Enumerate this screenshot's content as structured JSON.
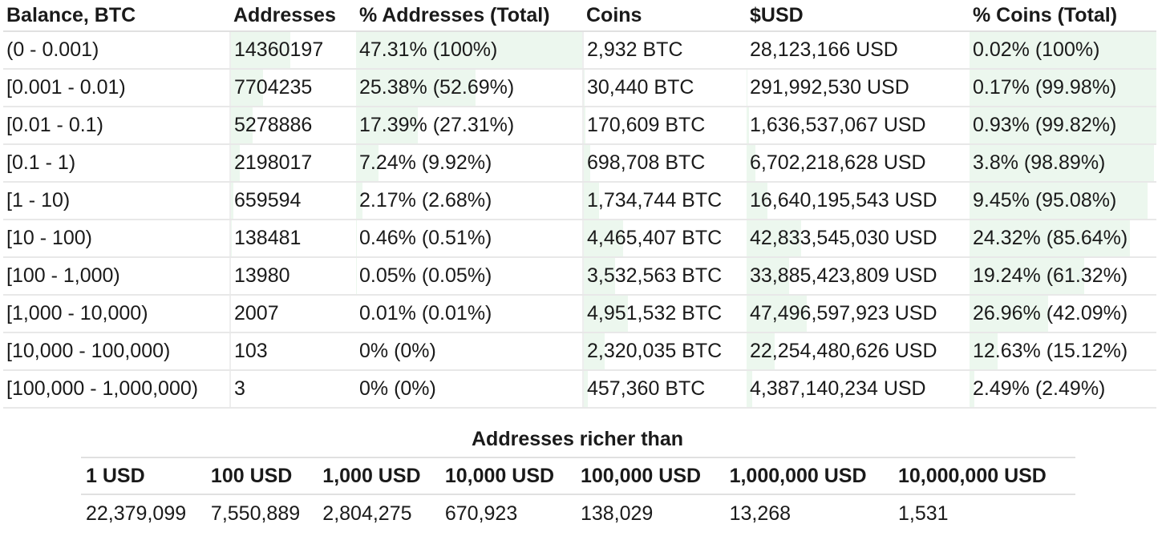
{
  "distribution": {
    "headers": [
      "Balance, BTC",
      "Addresses",
      "% Addresses (Total)",
      "Coins",
      "$USD",
      "% Coins (Total)"
    ],
    "fill_color": "#ecf7ee",
    "rows": [
      {
        "range": "(0 - 0.001)",
        "addresses": "14360197",
        "pct_addresses": "47.31% (100%)",
        "coins": "2,932 BTC",
        "usd": "28,123,166 USD",
        "pct_coins": "0.02% (100%)",
        "addr_pct": 47.31,
        "addr_cum": 100,
        "coins_pct": 0.02,
        "coins_cum": 100
      },
      {
        "range": "[0.001 - 0.01)",
        "addresses": "7704235",
        "pct_addresses": "25.38% (52.69%)",
        "coins": "30,440 BTC",
        "usd": "291,992,530 USD",
        "pct_coins": "0.17% (99.98%)",
        "addr_pct": 25.38,
        "addr_cum": 52.69,
        "coins_pct": 0.17,
        "coins_cum": 99.98
      },
      {
        "range": "[0.01 - 0.1)",
        "addresses": "5278886",
        "pct_addresses": "17.39% (27.31%)",
        "coins": "170,609 BTC",
        "usd": "1,636,537,067 USD",
        "pct_coins": "0.93% (99.82%)",
        "addr_pct": 17.39,
        "addr_cum": 27.31,
        "coins_pct": 0.93,
        "coins_cum": 99.82
      },
      {
        "range": "[0.1 - 1)",
        "addresses": "2198017",
        "pct_addresses": "7.24% (9.92%)",
        "coins": "698,708 BTC",
        "usd": "6,702,218,628 USD",
        "pct_coins": "3.8% (98.89%)",
        "addr_pct": 7.24,
        "addr_cum": 9.92,
        "coins_pct": 3.8,
        "coins_cum": 98.89
      },
      {
        "range": "[1 - 10)",
        "addresses": "659594",
        "pct_addresses": "2.17% (2.68%)",
        "coins": "1,734,744 BTC",
        "usd": "16,640,195,543 USD",
        "pct_coins": "9.45% (95.08%)",
        "addr_pct": 2.17,
        "addr_cum": 2.68,
        "coins_pct": 9.45,
        "coins_cum": 95.08
      },
      {
        "range": "[10 - 100)",
        "addresses": "138481",
        "pct_addresses": "0.46% (0.51%)",
        "coins": "4,465,407 BTC",
        "usd": "42,833,545,030 USD",
        "pct_coins": "24.32% (85.64%)",
        "addr_pct": 0.46,
        "addr_cum": 0.51,
        "coins_pct": 24.32,
        "coins_cum": 85.64
      },
      {
        "range": "[100 - 1,000)",
        "addresses": "13980",
        "pct_addresses": "0.05% (0.05%)",
        "coins": "3,532,563 BTC",
        "usd": "33,885,423,809 USD",
        "pct_coins": "19.24% (61.32%)",
        "addr_pct": 0.05,
        "addr_cum": 0.05,
        "coins_pct": 19.24,
        "coins_cum": 61.32
      },
      {
        "range": "[1,000 - 10,000)",
        "addresses": "2007",
        "pct_addresses": "0.01% (0.01%)",
        "coins": "4,951,532 BTC",
        "usd": "47,496,597,923 USD",
        "pct_coins": "26.96% (42.09%)",
        "addr_pct": 0.01,
        "addr_cum": 0.01,
        "coins_pct": 26.96,
        "coins_cum": 42.09
      },
      {
        "range": "[10,000 - 100,000)",
        "addresses": "103",
        "pct_addresses": "0% (0%)",
        "coins": "2,320,035 BTC",
        "usd": "22,254,480,626 USD",
        "pct_coins": "12.63% (15.12%)",
        "addr_pct": 0,
        "addr_cum": 0,
        "coins_pct": 12.63,
        "coins_cum": 15.12
      },
      {
        "range": "[100,000 - 1,000,000)",
        "addresses": "3",
        "pct_addresses": "0% (0%)",
        "coins": "457,360 BTC",
        "usd": "4,387,140,234 USD",
        "pct_coins": "2.49% (2.49%)",
        "addr_pct": 0,
        "addr_cum": 0,
        "coins_pct": 2.49,
        "coins_cum": 2.49
      }
    ]
  },
  "richer": {
    "title": "Addresses richer than",
    "headers": [
      "1 USD",
      "100 USD",
      "1,000 USD",
      "10,000 USD",
      "100,000 USD",
      "1,000,000 USD",
      "10,000,000 USD"
    ],
    "values": [
      "22,379,099",
      "7,550,889",
      "2,804,275",
      "670,923",
      "138,029",
      "13,268",
      "1,531"
    ]
  }
}
